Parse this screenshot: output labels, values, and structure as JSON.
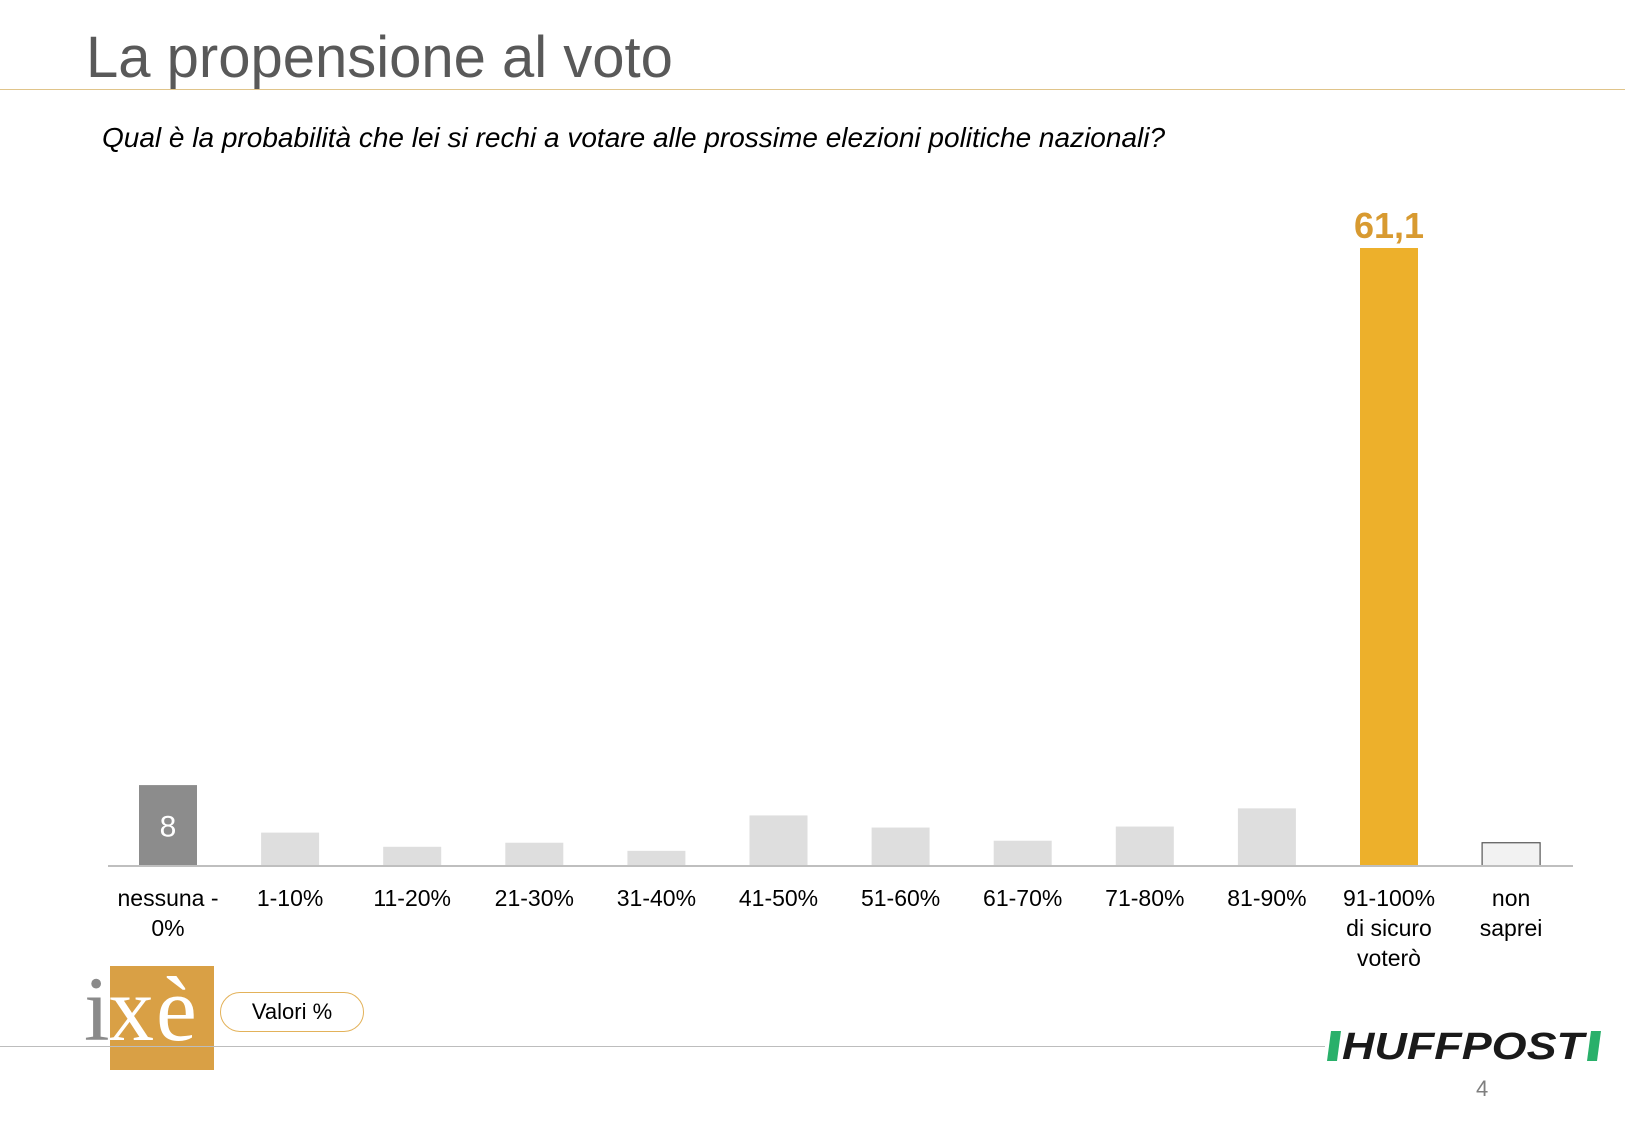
{
  "title": "La propensione al voto",
  "question": "Qual è la probabilità che lei si rechi a votare alle prossime elezioni politiche nazionali?",
  "valori_label": "Valori %",
  "page_number": "4",
  "logos": {
    "left": "ixè",
    "right": "HUFFPOST"
  },
  "colors": {
    "highlight": "#edb02b",
    "first": "#8c8c8c",
    "other": "#dedede",
    "last": "#f2f2f2",
    "highlight_label": "#d89a30"
  },
  "chart_data": {
    "type": "bar",
    "title": "",
    "xlabel": "",
    "ylabel": "",
    "ylim": [
      0,
      61.1
    ],
    "categories": [
      [
        "nessuna -",
        "0%"
      ],
      [
        "1-10%"
      ],
      [
        "11-20%"
      ],
      [
        "21-30%"
      ],
      [
        "31-40%"
      ],
      [
        "41-50%"
      ],
      [
        "51-60%"
      ],
      [
        "61-70%"
      ],
      [
        "71-80%"
      ],
      [
        "81-90%"
      ],
      [
        "91-100%",
        "di sicuro",
        "voterò"
      ],
      [
        "non",
        "saprei"
      ]
    ],
    "values": [
      8,
      3.3,
      1.9,
      2.3,
      1.5,
      5.0,
      3.8,
      2.5,
      3.9,
      5.7,
      61.1,
      2.3
    ],
    "data_labels": [
      "8",
      "",
      "",
      "",
      "",
      "",
      "",
      "",
      "",
      "",
      "61,1",
      ""
    ]
  }
}
